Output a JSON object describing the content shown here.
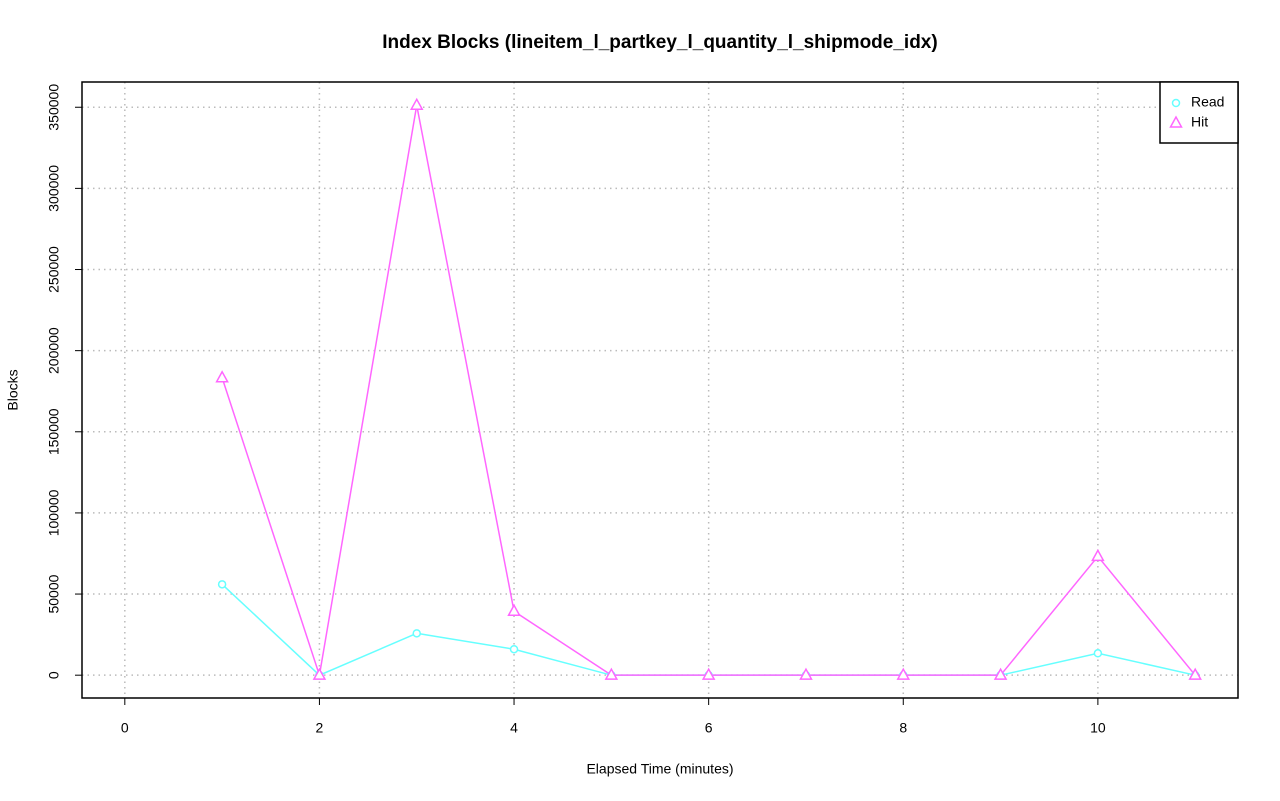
{
  "chart_data": {
    "type": "line",
    "title": "Index Blocks (lineitem_l_partkey_l_quantity_l_shipmode_idx)",
    "x_label": "Elapsed Time (minutes)",
    "y_label": "Blocks",
    "x": [
      1,
      2,
      3,
      4,
      5,
      6,
      7,
      8,
      9,
      10,
      11
    ],
    "series": [
      {
        "name": "Read",
        "color": "#66ffff",
        "marker": "circle",
        "values": [
          56000,
          0,
          25800,
          16000,
          0,
          0,
          0,
          0,
          0,
          13500,
          0
        ]
      },
      {
        "name": "Hit",
        "color": "#ff66ff",
        "marker": "triangle",
        "values": [
          183300,
          0,
          351200,
          39400,
          0,
          0,
          0,
          0,
          0,
          73200,
          0
        ]
      }
    ],
    "xlim": [
      -0.44,
      11.44
    ],
    "xticks": [
      0,
      2,
      4,
      6,
      8,
      10
    ],
    "ylim": [
      -14060,
      365560
    ],
    "yticks": [
      0,
      50000,
      100000,
      150000,
      200000,
      250000,
      300000,
      350000
    ],
    "grid": true,
    "legend": "top-right"
  }
}
